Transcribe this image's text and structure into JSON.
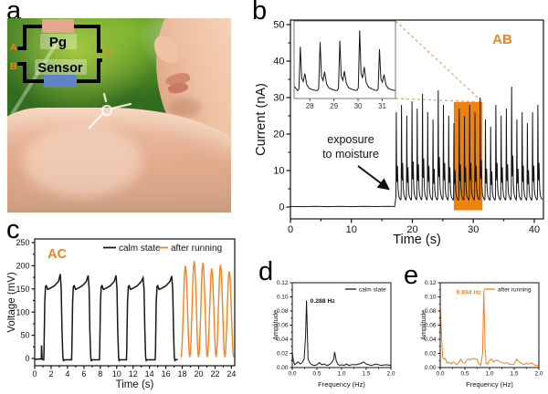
{
  "figure": {
    "panels": {
      "a": {
        "label": "a",
        "circuit": {
          "pg_label": "Pg",
          "sensor_label": "Sensor",
          "terminal_a": "A",
          "terminal_b": "B",
          "terminal_c": "C",
          "pg_color": "#e3a78c",
          "sensor_color": "#6283c4",
          "terminal_color": "#f5821f",
          "wire_color": "#000000"
        }
      },
      "b": {
        "label": "b"
      },
      "c": {
        "label": "c"
      },
      "d": {
        "label": "d"
      },
      "e": {
        "label": "e"
      }
    },
    "colors": {
      "accent_orange": "#f5821f",
      "curve_black": "#161616"
    }
  },
  "chart_data": [
    {
      "id": "b",
      "type": "line",
      "tag": "AB",
      "tag_color": "#f5821f",
      "xlabel": "Time (s)",
      "ylabel": "Current (nA)",
      "xlim": [
        0,
        41.5
      ],
      "ylim": [
        0,
        50
      ],
      "xticks": [
        0,
        10,
        20,
        30,
        40
      ],
      "xtick_labels": [
        "0",
        "10",
        "20",
        "30",
        "40"
      ],
      "yticks": [
        0,
        10,
        20,
        30,
        40,
        50
      ],
      "ytick_labels": [
        "0",
        "10",
        "20",
        "30",
        "40",
        "50"
      ],
      "grid": false,
      "legend_position": "none",
      "annotation": {
        "lines": [
          "exposure",
          "to moisture"
        ],
        "arrow_target_time": 17.2
      },
      "highlight_box": {
        "t0": 26.8,
        "t1": 31.5,
        "v0": -0.9,
        "v1": 28.8,
        "color": "#ee820f"
      },
      "series": [
        {
          "name": "current",
          "color": "#161616",
          "baseline": {
            "points": [
              [
                0,
                0.15
              ],
              [
                2,
                0.1
              ],
              [
                4,
                0.2
              ],
              [
                6,
                0.1
              ],
              [
                8,
                0.18
              ],
              [
                10,
                0.1
              ],
              [
                12,
                0.2
              ],
              [
                14,
                0.12
              ],
              [
                16,
                0.18
              ],
              [
                17.1,
                0.12
              ]
            ]
          },
          "oscillation": {
            "onset": 17.25,
            "period": 0.86,
            "base": 1.5,
            "peak_heights": [
              26,
              28,
              25,
              29,
              27,
              31,
              26,
              24,
              32,
              28,
              25,
              23,
              27,
              25,
              28,
              26,
              30,
              24,
              22,
              28,
              25,
              27,
              33,
              24,
              26,
              23,
              26,
              28
            ],
            "cycle_shape": [
              [
                0,
                0.02
              ],
              [
                0.06,
                0.06
              ],
              [
                0.13,
                1
              ],
              [
                0.2,
                0.3
              ],
              [
                0.28,
                0.22
              ],
              [
                0.36,
                0.4
              ],
              [
                0.46,
                0.15
              ],
              [
                0.58,
                0.07
              ],
              [
                0.75,
                0.04
              ],
              [
                0.92,
                0.02
              ]
            ]
          }
        }
      ],
      "inset": {
        "xlim": [
          27.35,
          31.55
        ],
        "ylim": [
          31.5,
          48
        ],
        "xticks": [
          28,
          29,
          30,
          31
        ],
        "xtick_labels": [
          "28",
          "29",
          "30",
          "31"
        ],
        "oscillation": {
          "onset": 27.5,
          "period": 0.82,
          "base": 33,
          "peak_heights": [
            42.5,
            43.5,
            43.8,
            46,
            42
          ],
          "cycle_shape": [
            [
              0,
              0.02
            ],
            [
              0.06,
              0.06
            ],
            [
              0.13,
              1
            ],
            [
              0.2,
              0.3
            ],
            [
              0.28,
              0.22
            ],
            [
              0.36,
              0.4
            ],
            [
              0.46,
              0.15
            ],
            [
              0.58,
              0.07
            ],
            [
              0.75,
              0.04
            ],
            [
              0.92,
              0.02
            ]
          ]
        }
      }
    },
    {
      "id": "c",
      "type": "line",
      "tag": "AC",
      "tag_color": "#f5821f",
      "xlabel": "Time (s)",
      "ylabel": "Voltage (mV)",
      "xlim": [
        0,
        24.4
      ],
      "ylim": [
        0,
        250
      ],
      "xticks": [
        0,
        2,
        4,
        6,
        8,
        10,
        12,
        14,
        16,
        18,
        20,
        22,
        24
      ],
      "xtick_labels": [
        "0",
        "2",
        "4",
        "6",
        "8",
        "10",
        "12",
        "14",
        "16",
        "18",
        "20",
        "22",
        "24"
      ],
      "yticks": [
        0,
        50,
        100,
        150,
        200,
        250
      ],
      "ytick_labels": [
        "0",
        "50",
        "100",
        "150",
        "200",
        "250"
      ],
      "grid": false,
      "legend": [
        {
          "label": "calm state",
          "color": "#161616"
        },
        {
          "label": "after running",
          "color": "#f5821f"
        }
      ],
      "series": [
        {
          "name": "calm state",
          "color": "#161616",
          "start_glitch": [
            [
              0,
              -2
            ],
            [
              0.8,
              -1
            ],
            [
              0.84,
              28
            ],
            [
              0.9,
              -2
            ]
          ],
          "pulses": {
            "starts": [
              1.1,
              4.5,
              7.9,
              11.2,
              14.7
            ],
            "duration": 2.4,
            "rest_value": -3,
            "peak_heights": [
              182,
              179,
              179,
              174,
              178
            ],
            "shape": [
              [
                0,
                -3
              ],
              [
                0.015,
                20
              ],
              [
                0.05,
                120
              ],
              [
                0.09,
                155
              ],
              [
                0.13,
                157
              ],
              [
                0.2,
                149
              ],
              [
                0.35,
                152
              ],
              [
                0.55,
                157
              ],
              [
                0.75,
                166
              ],
              [
                0.84,
                null
              ],
              [
                0.89,
                150
              ],
              [
                0.93,
                60
              ],
              [
                0.97,
                5
              ],
              [
                1,
                -6
              ]
            ]
          }
        },
        {
          "name": "after running",
          "color": "#f5821f",
          "cycles": {
            "start": 17.85,
            "period": 1.07,
            "min": 3,
            "t_end": 24.35,
            "peak_heights": [
              200,
              210,
              206,
              194,
              202,
              188
            ]
          }
        }
      ]
    },
    {
      "id": "d",
      "type": "line",
      "xlabel": "Frequency (Hz)",
      "ylabel": "Amplitude",
      "xlim": [
        0,
        2
      ],
      "ylim": [
        0,
        0.12
      ],
      "xticks": [
        0,
        0.5,
        1,
        1.5,
        2
      ],
      "xtick_labels": [
        "0.0",
        "0.5",
        "1.0",
        "1.5",
        "2.0"
      ],
      "yticks": [
        0,
        0.02,
        0.04,
        0.06,
        0.08,
        0.1,
        0.12
      ],
      "ytick_labels": [
        "0.00",
        "0.02",
        "0.04",
        "0.06",
        "0.08",
        "0.10",
        "0.12"
      ],
      "grid": false,
      "legend": [
        {
          "label": "calm state",
          "color": "#161616"
        }
      ],
      "peak_annotation": {
        "text": "0.288 Hz",
        "freq": 0.288,
        "amplitude": 0.095,
        "color": "#161616"
      },
      "series": [
        {
          "name": "calm state",
          "color": "#161616",
          "points": [
            [
              0,
              0.022
            ],
            [
              0.02,
              0.01
            ],
            [
              0.05,
              0.004
            ],
            [
              0.08,
              0.006
            ],
            [
              0.12,
              0.008
            ],
            [
              0.16,
              0.005
            ],
            [
              0.2,
              0.007
            ],
            [
              0.24,
              0.012
            ],
            [
              0.27,
              0.045
            ],
            [
              0.288,
              0.095
            ],
            [
              0.305,
              0.05
            ],
            [
              0.32,
              0.012
            ],
            [
              0.36,
              0.006
            ],
            [
              0.4,
              0.004
            ],
            [
              0.45,
              0.003
            ],
            [
              0.5,
              0.004
            ],
            [
              0.55,
              0.007
            ],
            [
              0.6,
              0.004
            ],
            [
              0.65,
              0.005
            ],
            [
              0.7,
              0.003
            ],
            [
              0.75,
              0.004
            ],
            [
              0.8,
              0.007
            ],
            [
              0.84,
              0.012
            ],
            [
              0.86,
              0.022
            ],
            [
              0.89,
              0.01
            ],
            [
              0.92,
              0.005
            ],
            [
              0.96,
              0.003
            ],
            [
              1,
              0.004
            ],
            [
              1.05,
              0.003
            ],
            [
              1.1,
              0.005
            ],
            [
              1.15,
              0.003
            ],
            [
              1.2,
              0.004
            ],
            [
              1.3,
              0.004
            ],
            [
              1.4,
              0.006
            ],
            [
              1.45,
              0.008
            ],
            [
              1.5,
              0.005
            ],
            [
              1.6,
              0.003
            ],
            [
              1.7,
              0.005
            ],
            [
              1.8,
              0.003
            ],
            [
              1.9,
              0.004
            ],
            [
              2,
              0.003
            ]
          ]
        }
      ]
    },
    {
      "id": "e",
      "type": "line",
      "xlabel": "Frequency (Hz)",
      "ylabel": "Amplitude",
      "xlim": [
        0,
        2
      ],
      "ylim": [
        0,
        0.12
      ],
      "xticks": [
        0,
        0.5,
        1,
        1.5,
        2
      ],
      "xtick_labels": [
        "0.0",
        "0.5",
        "1.0",
        "1.5",
        "2.0"
      ],
      "yticks": [
        0,
        0.02,
        0.04,
        0.06,
        0.08,
        0.1,
        0.12
      ],
      "ytick_labels": [
        "0.00",
        "0.02",
        "0.04",
        "0.06",
        "0.08",
        "0.10",
        "0.12"
      ],
      "grid": false,
      "legend": [
        {
          "label": "after running",
          "color": "#f5821f"
        }
      ],
      "peak_annotation": {
        "text": "0.884 Hz",
        "freq": 0.884,
        "amplitude": 0.11,
        "color": "#f5821f"
      },
      "series": [
        {
          "name": "after running",
          "color": "#f5821f",
          "points": [
            [
              0,
              0.088
            ],
            [
              0.02,
              0.055
            ],
            [
              0.05,
              0.014
            ],
            [
              0.08,
              0.012
            ],
            [
              0.1,
              0.013
            ],
            [
              0.14,
              0.006
            ],
            [
              0.18,
              0.008
            ],
            [
              0.22,
              0.005
            ],
            [
              0.26,
              0.008
            ],
            [
              0.3,
              0.006
            ],
            [
              0.34,
              0.004
            ],
            [
              0.38,
              0.008
            ],
            [
              0.42,
              0.012
            ],
            [
              0.46,
              0.007
            ],
            [
              0.5,
              0.006
            ],
            [
              0.54,
              0.011
            ],
            [
              0.58,
              0.012
            ],
            [
              0.62,
              0.011
            ],
            [
              0.66,
              0.013
            ],
            [
              0.7,
              0.012
            ],
            [
              0.74,
              0.012
            ],
            [
              0.78,
              0.006
            ],
            [
              0.82,
              0.003
            ],
            [
              0.86,
              0.02
            ],
            [
              0.884,
              0.11
            ],
            [
              0.91,
              0.03
            ],
            [
              0.93,
              0.006
            ],
            [
              0.96,
              0.005
            ],
            [
              1,
              0.01
            ],
            [
              1.04,
              0.012
            ],
            [
              1.08,
              0.008
            ],
            [
              1.12,
              0.01
            ],
            [
              1.16,
              0.01
            ],
            [
              1.2,
              0.009
            ],
            [
              1.25,
              0.007
            ],
            [
              1.3,
              0.006
            ],
            [
              1.35,
              0.007
            ],
            [
              1.4,
              0.005
            ],
            [
              1.45,
              0.004
            ],
            [
              1.5,
              0.005
            ],
            [
              1.55,
              0.012
            ],
            [
              1.6,
              0.008
            ],
            [
              1.65,
              0.006
            ],
            [
              1.7,
              0.004
            ],
            [
              1.75,
              0.006
            ],
            [
              1.8,
              0.005
            ],
            [
              1.85,
              0.007
            ],
            [
              1.9,
              0.004
            ],
            [
              1.95,
              0.003
            ],
            [
              2,
              0.003
            ]
          ]
        }
      ]
    }
  ]
}
